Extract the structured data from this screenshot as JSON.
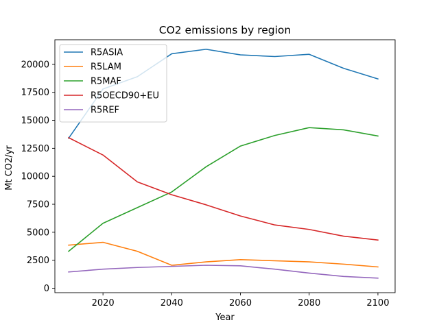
{
  "chart_data": {
    "type": "line",
    "title": "CO2 emissions by region",
    "xlabel": "Year",
    "ylabel": "Mt CO2/yr",
    "x": [
      2010,
      2020,
      2030,
      2040,
      2050,
      2060,
      2070,
      2080,
      2090,
      2100
    ],
    "xlim": [
      2006,
      2105
    ],
    "ylim": [
      -400,
      22200
    ],
    "xticks": [
      2020,
      2040,
      2060,
      2080,
      2100
    ],
    "yticks": [
      0,
      2500,
      5000,
      7500,
      10000,
      12500,
      15000,
      17500,
      20000
    ],
    "ytick_labels": [
      "0",
      "2500",
      "5000",
      "7500",
      "10000",
      "12500",
      "15000",
      "17500",
      "20000"
    ],
    "grid": false,
    "legend_position": "top-left",
    "series": [
      {
        "name": "R5ASIA",
        "color": "#1f77b4",
        "values": [
          13400,
          17800,
          18900,
          20950,
          21350,
          20850,
          20700,
          20900,
          19650,
          18700
        ]
      },
      {
        "name": "R5LAM",
        "color": "#ff7f0e",
        "values": [
          3850,
          4100,
          3300,
          2050,
          2350,
          2550,
          2450,
          2350,
          2150,
          1900
        ]
      },
      {
        "name": "R5MAF",
        "color": "#2ca02c",
        "values": [
          3300,
          5800,
          7200,
          8600,
          10850,
          12700,
          13650,
          14350,
          14150,
          13600
        ]
      },
      {
        "name": "R5OECD90+EU",
        "color": "#d62728",
        "values": [
          13450,
          11900,
          9500,
          8350,
          7450,
          6450,
          5650,
          5250,
          4650,
          4300
        ]
      },
      {
        "name": "R5REF",
        "color": "#9467bd",
        "values": [
          1450,
          1700,
          1850,
          1950,
          2050,
          2000,
          1700,
          1350,
          1050,
          900
        ]
      }
    ]
  }
}
